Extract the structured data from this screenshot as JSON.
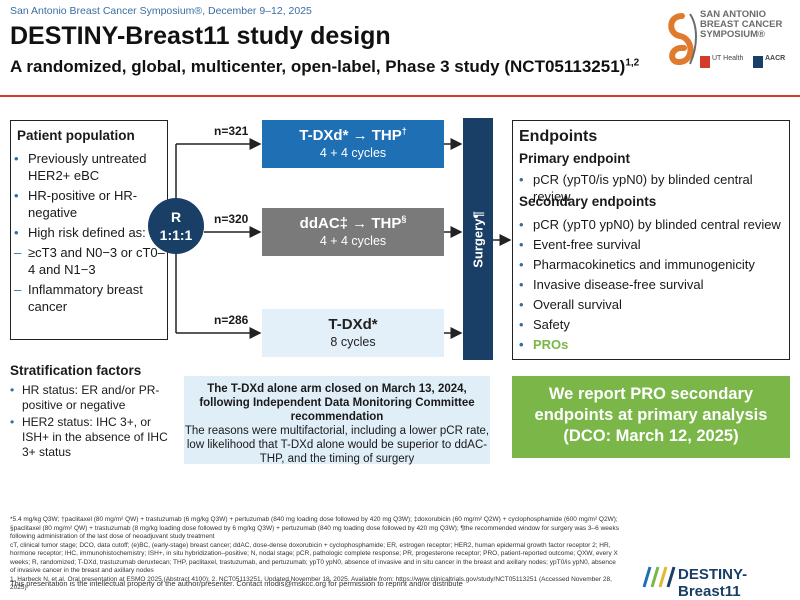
{
  "header": {
    "meeting": "San Antonio Breast Cancer Symposium®, December 9–12, 2025",
    "title": "DESTINY-Breast11 study design",
    "subtitle": "A randomized, global, multicenter, open-label, Phase 3 study (NCT05113251)",
    "subtitle_refs": "1,2"
  },
  "logo": {
    "name_line1": "SAN ANTONIO",
    "name_line2": "BREAST CANCER",
    "name_line3": "SYMPOSIUM®",
    "partner1": "UT Health",
    "partner2": "AACR"
  },
  "population": {
    "title": "Patient population",
    "items": [
      {
        "marker": "•",
        "text": "Previously untreated HER2+ eBC"
      },
      {
        "marker": "•",
        "text": "HR-positive or HR-negative"
      },
      {
        "marker": "•",
        "text": "High risk defined as:"
      },
      {
        "marker": "–",
        "text": "≥cT3 and N0−3 or cT0–4 and N1−3"
      },
      {
        "marker": "–",
        "text": "Inflammatory breast cancer"
      }
    ]
  },
  "stratification": {
    "title": "Stratification factors",
    "items": [
      {
        "marker": "•",
        "text": "HR status: ER and/or PR-positive or negative"
      },
      {
        "marker": "•",
        "text": "HER2 status: IHC 3+, or ISH+ in the absence of IHC 3+ status"
      }
    ]
  },
  "randomization": {
    "line1": "R",
    "line2": "1:1:1"
  },
  "arms": [
    {
      "n": "n=321",
      "name": "T-DXd* → THP",
      "sup": "†",
      "cycles": "4 + 4 cycles"
    },
    {
      "n": "n=320",
      "name": "ddAC‡ → THP",
      "sup": "§",
      "cycles": "4 + 4 cycles"
    },
    {
      "n": "n=286",
      "name": "T-DXd*",
      "sup": "",
      "cycles": "8 cycles"
    }
  ],
  "surgery": {
    "label": "Surgery¶"
  },
  "endpoints": {
    "title": "Endpoints",
    "primary_title": "Primary endpoint",
    "primary": [
      "pCR (ypT0/is ypN0) by blinded central review"
    ],
    "secondary_title": "Secondary endpoints",
    "secondary": [
      "pCR (ypT0 ypN0) by blinded central review",
      "Event-free survival",
      "Pharmacokinetics and immunogenicity",
      "Invasive disease-free survival",
      "Overall survival",
      "Safety",
      "PROs"
    ]
  },
  "notice": {
    "bold": "The T-DXd alone arm closed on March 13, 2024, following Independent Data Monitoring Committee recommendation",
    "text": "The reasons were multifactorial, including a lower pCR rate, low likelihood that T-DXd alone would be superior to ddAC-THP, and the timing of surgery"
  },
  "report": {
    "text": "We report PRO secondary endpoints at primary analysis (DCO: March 12, 2025)"
  },
  "footnotes": {
    "line1": "*5.4 mg/kg Q3W; †paclitaxel (80 mg/m² QW) + trastuzumab (6 mg/kg Q3W) + pertuzumab (840 mg loading dose followed by 420 mg Q3W); ‡doxorubicin (60 mg/m² Q2W) + cyclophosphamide (600 mg/m² Q2W); §paclitaxel (80 mg/m² QW) + trastuzumab (8 mg/kg loading dose followed by 6 mg/kg Q3W) + pertuzumab (840 mg loading dose followed by 420 mg Q3W); ¶the recommended window for surgery was 3–6 weeks following administration of the last dose of neoadjuvant study treatment",
    "line2": "cT, clinical tumor stage; DCO, data cutoff; (e)BC, (early-stage) breast cancer; ddAC, dose-dense doxorubicin + cyclophosphamide; ER, estrogen receptor; HER2, human epidermal growth factor receptor 2; HR, hormone receptor; IHC, immunohistochemistry; ISH+, in situ hybridization–positive; N, nodal stage; pCR, pathologic complete response; PR, progesterone receptor; PRO, patient-reported outcome; QXW, every X weeks; R, randomized; T-DXd, trastuzumab deruxtecan; THP, paclitaxel, trastuzumab, and pertuzumab; ypT0 ypN0, absence of invasive and in situ cancer in the breast and axillary nodes; ypT0/is ypN0, absence of invasive cancer in the breast and axillary nodes",
    "line3": "1. Harbeck N, et al. Oral presentation at ESMO 2025 (Abstract 4100); 2. NCT05113251. Updated November 18, 2025. Available from: https://www.clinicaltrials.gov/study/NCT05113251 (Accessed November 28, 2025)"
  },
  "disclaimer": "This presentation is the intellectual property of the author/presenter. Contact modis@mskcc.org for permission to reprint and/or distribute",
  "brand": {
    "name": "DESTINY-Breast11"
  },
  "colors": {
    "accent_blue": "#1f6fb5",
    "navy": "#1a3f66",
    "green": "#7ab648",
    "gray": "#7a7a7a",
    "light_blue": "#e3f0f9",
    "red": "#d33b2c"
  }
}
